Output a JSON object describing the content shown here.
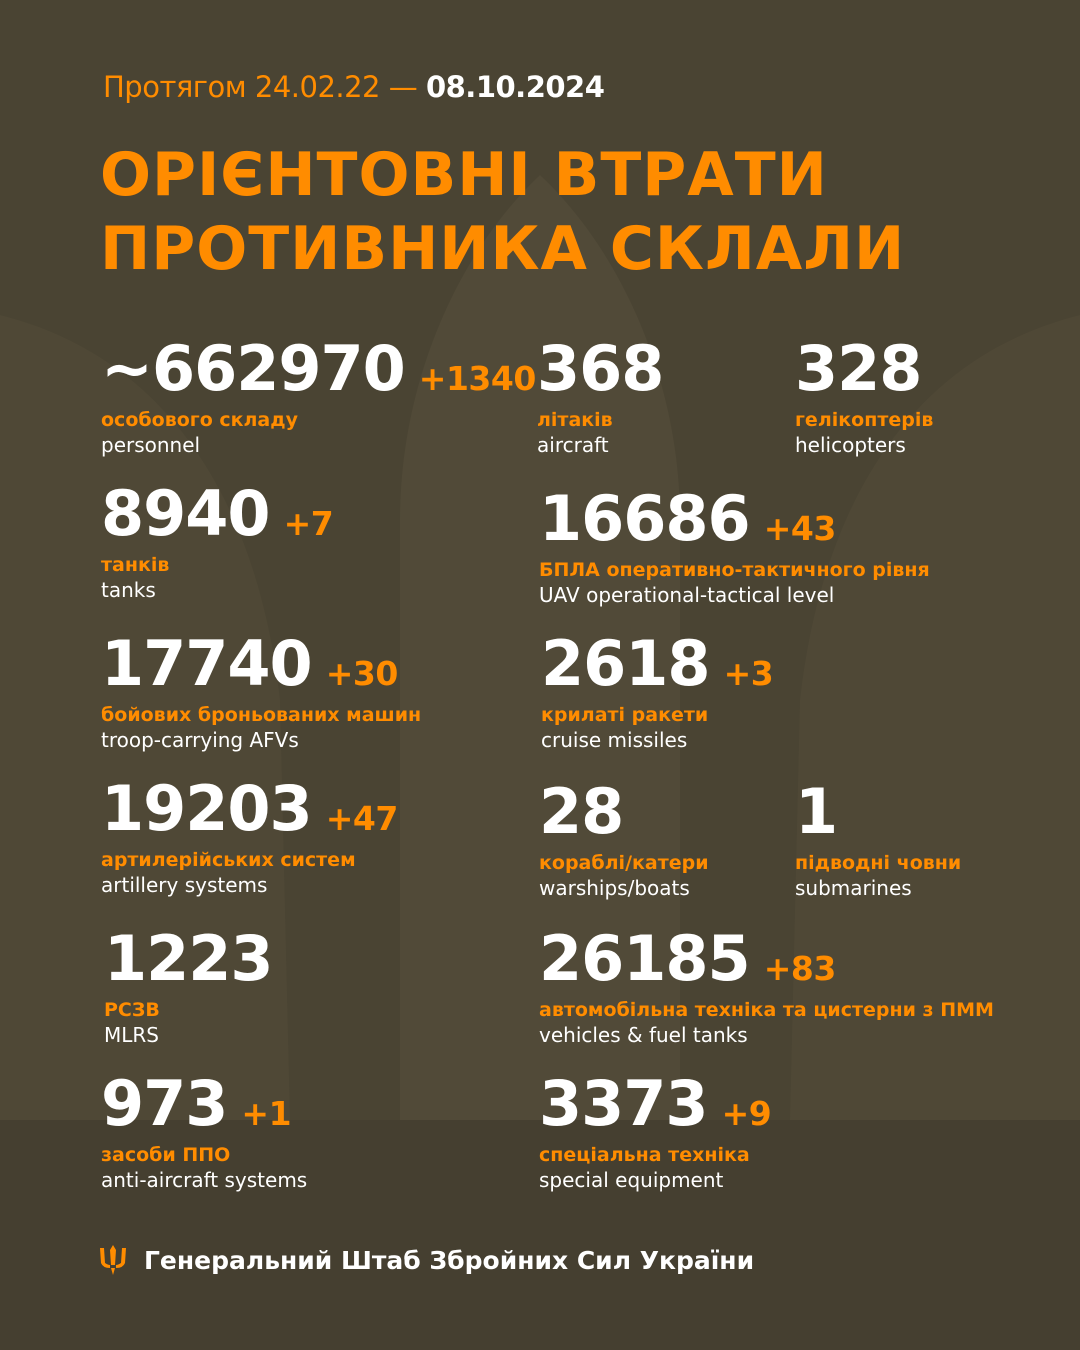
{
  "header": {
    "period_prefix": "Протягом 24.02.22 —",
    "period_end": "08.10.2024",
    "title_line1": "ОРІЄНТОВНІ ВТРАТИ",
    "title_line2": "ПРОТИВНИКА СКЛАЛИ"
  },
  "colors": {
    "accent": "#ff8c00",
    "background": "#4a4433",
    "text": "#ffffff"
  },
  "stats": [
    {
      "value": "~662970",
      "delta": "+1340",
      "ua": "особового складу",
      "en": "personnel"
    },
    {
      "value": "368",
      "delta": "",
      "ua": "літаків",
      "en": "aircraft"
    },
    {
      "value": "328",
      "delta": "",
      "ua": "гелікоптерів",
      "en": "helicopters"
    },
    {
      "value": "8940",
      "delta": "+7",
      "ua": "танків",
      "en": "tanks"
    },
    {
      "value": "16686",
      "delta": "+43",
      "ua": "БПЛА оперативно-тактичного рівня",
      "en": "UAV operational-tactical level"
    },
    {
      "value": "17740",
      "delta": "+30",
      "ua": "бойових броньованих машин",
      "en": "troop-carrying AFVs"
    },
    {
      "value": "2618",
      "delta": "+3",
      "ua": "крилаті ракети",
      "en": "cruise missiles"
    },
    {
      "value": "19203",
      "delta": "+47",
      "ua": "артилерійських систем",
      "en": "artillery systems"
    },
    {
      "value": "28",
      "delta": "",
      "ua": "кораблі/катери",
      "en": "warships/boats"
    },
    {
      "value": "1",
      "delta": "",
      "ua": "підводні човни",
      "en": "submarines"
    },
    {
      "value": "1223",
      "delta": "",
      "ua": "РСЗВ",
      "en": "MLRS"
    },
    {
      "value": "26185",
      "delta": "+83",
      "ua": "автомобільна техніка та цистерни з ПММ",
      "en": "vehicles & fuel tanks"
    },
    {
      "value": "973",
      "delta": "+1",
      "ua": "засоби ППО",
      "en": "anti-aircraft systems"
    },
    {
      "value": "3373",
      "delta": "+9",
      "ua": "спеціальна техніка",
      "en": "special equipment"
    }
  ],
  "footer": {
    "logo_icon": "trident-icon",
    "org": "Генеральний Штаб Збройних Сил України"
  }
}
